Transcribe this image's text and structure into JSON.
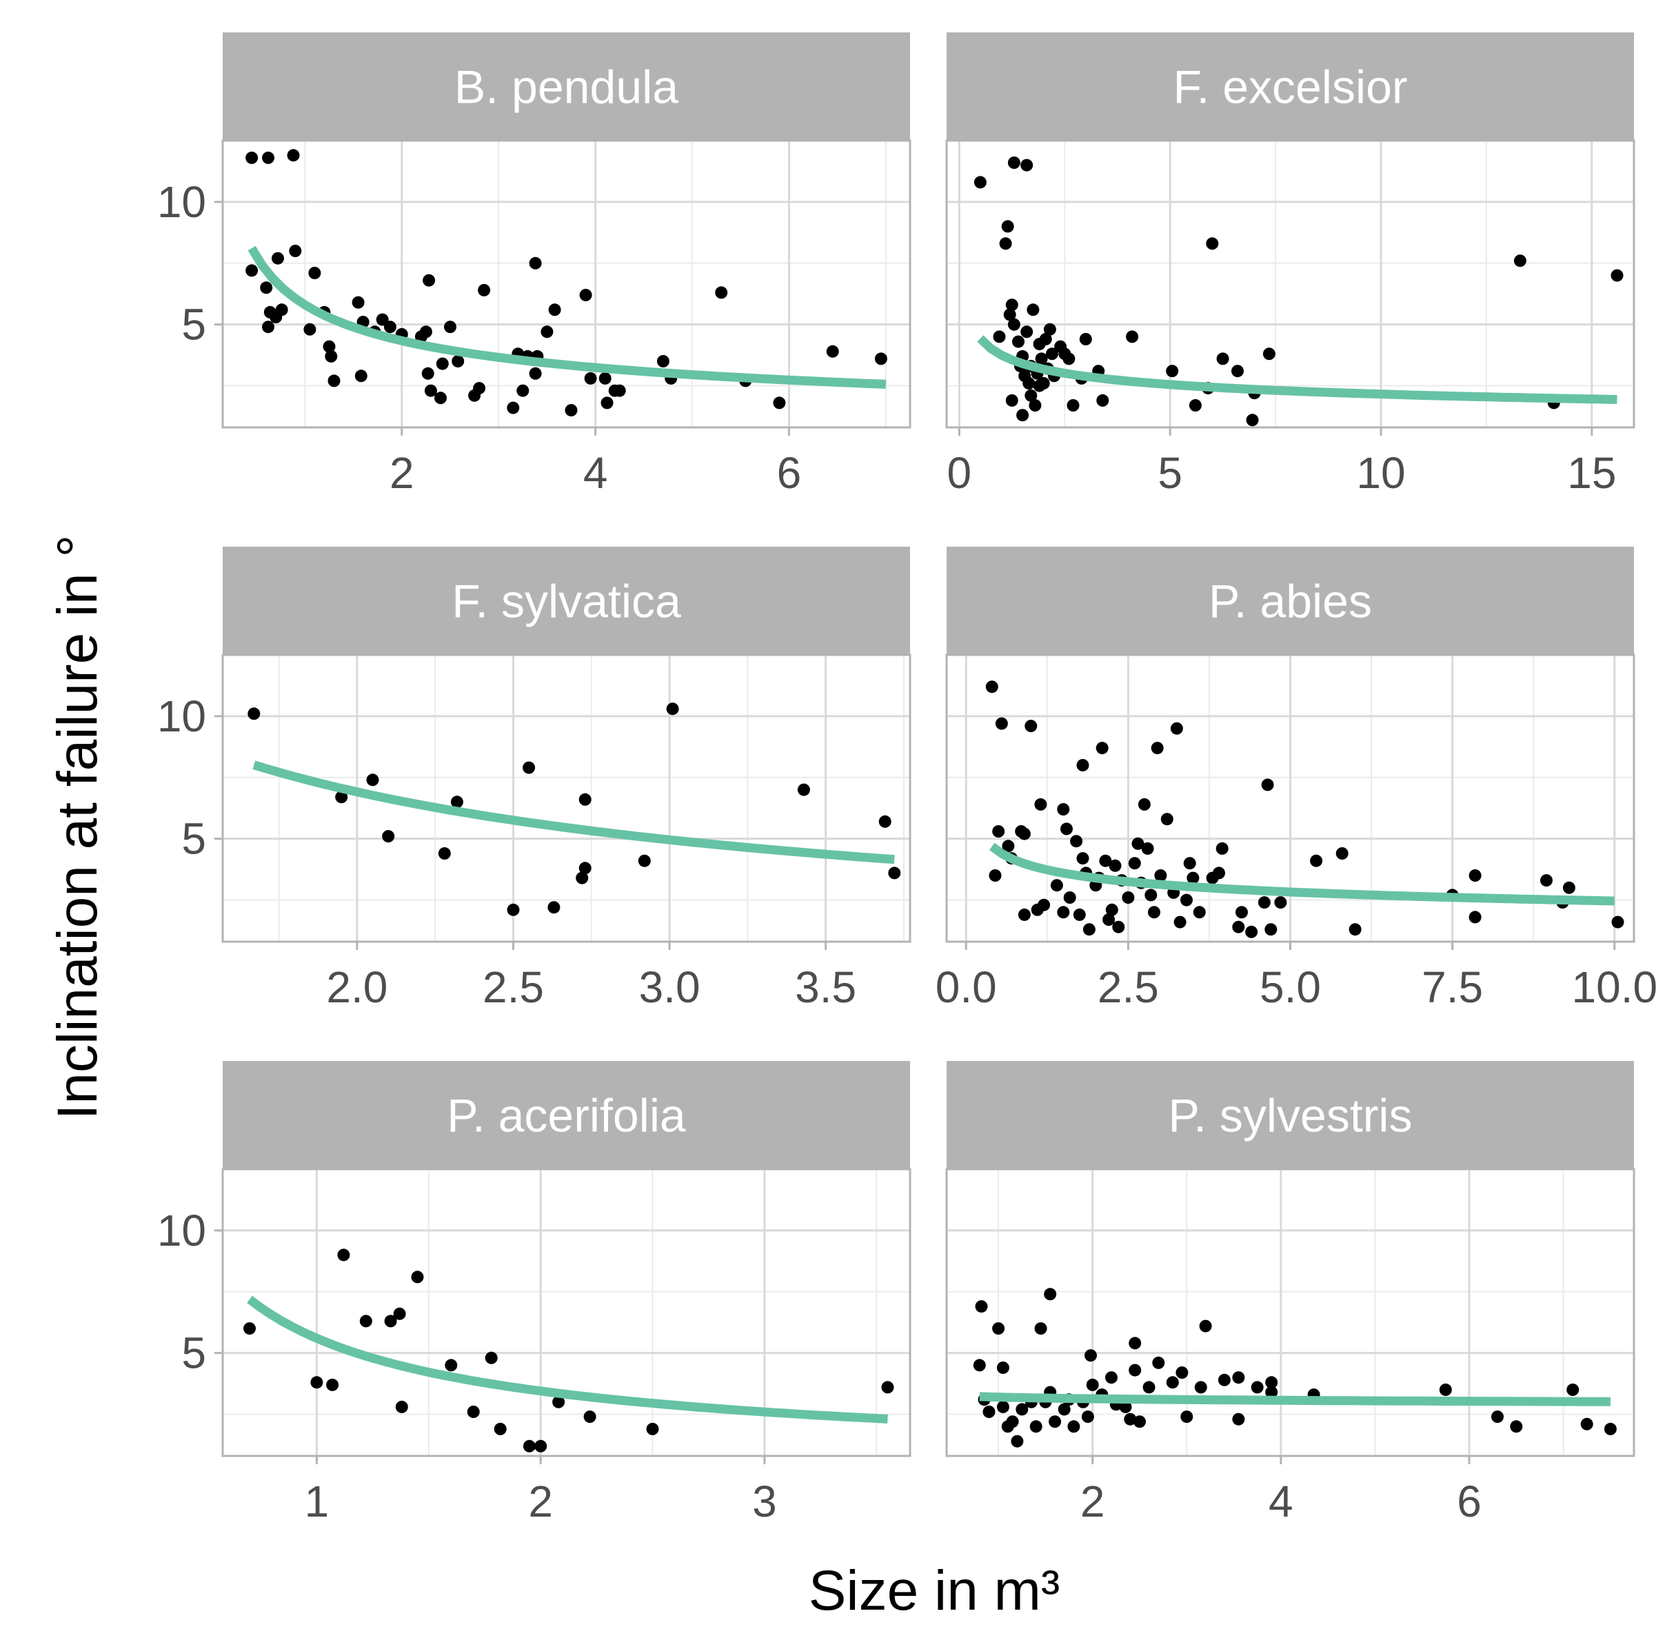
{
  "chart_data": {
    "type": "scatter",
    "xlabel": "Size in m³",
    "ylabel": "Inclination at failure in °",
    "ylim": [
      0.8,
      12.5
    ],
    "y_ticks": [
      5,
      10
    ],
    "colors": {
      "fit_line": "#66c2a5",
      "points": "#000000",
      "strip": "#b3b3b3",
      "grid_major": "#d9d9d9",
      "grid_minor": "#ebebeb",
      "panel_border": "#b3b3b3"
    },
    "panels": [
      {
        "title": "B. pendula",
        "xlim": [
          0.15,
          7.25
        ],
        "x_ticks": [
          2,
          4,
          6
        ],
        "x_tick_labels": [
          "2",
          "4",
          "6"
        ],
        "fit": {
          "a": 5.8,
          "b": 0.42,
          "x_start": 0.45,
          "x_end": 7.0
        },
        "points": [
          [
            0.45,
            11.8
          ],
          [
            0.62,
            11.8
          ],
          [
            0.88,
            11.9
          ],
          [
            0.45,
            7.2
          ],
          [
            0.6,
            6.5
          ],
          [
            0.62,
            4.9
          ],
          [
            0.64,
            5.5
          ],
          [
            0.7,
            5.3
          ],
          [
            0.72,
            7.7
          ],
          [
            0.76,
            5.6
          ],
          [
            0.9,
            8.0
          ],
          [
            1.05,
            4.8
          ],
          [
            1.1,
            7.1
          ],
          [
            1.2,
            5.5
          ],
          [
            1.25,
            4.1
          ],
          [
            1.27,
            3.7
          ],
          [
            1.3,
            2.7
          ],
          [
            1.55,
            5.9
          ],
          [
            1.58,
            2.9
          ],
          [
            1.6,
            5.1
          ],
          [
            1.72,
            4.7
          ],
          [
            1.8,
            5.2
          ],
          [
            1.88,
            4.9
          ],
          [
            2.0,
            4.6
          ],
          [
            2.2,
            4.5
          ],
          [
            2.25,
            4.7
          ],
          [
            2.27,
            3.0
          ],
          [
            2.28,
            6.8
          ],
          [
            2.3,
            2.3
          ],
          [
            2.4,
            2.0
          ],
          [
            2.42,
            3.4
          ],
          [
            2.5,
            4.9
          ],
          [
            2.58,
            3.5
          ],
          [
            2.75,
            2.1
          ],
          [
            2.8,
            2.4
          ],
          [
            2.85,
            6.4
          ],
          [
            3.15,
            1.6
          ],
          [
            3.2,
            3.8
          ],
          [
            3.25,
            2.3
          ],
          [
            3.3,
            3.7
          ],
          [
            3.38,
            3.0
          ],
          [
            3.38,
            7.5
          ],
          [
            3.4,
            3.7
          ],
          [
            3.5,
            4.7
          ],
          [
            3.58,
            5.6
          ],
          [
            3.75,
            1.5
          ],
          [
            3.9,
            6.2
          ],
          [
            3.95,
            2.8
          ],
          [
            4.1,
            2.8
          ],
          [
            4.12,
            1.8
          ],
          [
            4.2,
            2.3
          ],
          [
            4.25,
            2.3
          ],
          [
            4.7,
            3.5
          ],
          [
            4.78,
            2.8
          ],
          [
            5.3,
            6.3
          ],
          [
            5.55,
            2.7
          ],
          [
            5.9,
            1.8
          ],
          [
            6.45,
            3.9
          ],
          [
            6.95,
            3.6
          ]
        ]
      },
      {
        "title": "F. excelsior",
        "xlim": [
          -0.3,
          16.0
        ],
        "x_ticks": [
          0,
          5,
          10,
          15
        ],
        "x_tick_labels": [
          "0",
          "5",
          "10",
          "15"
        ],
        "fit": {
          "a": 3.75,
          "b": 0.24,
          "x_start": 0.5,
          "x_end": 15.6
        },
        "points": [
          [
            0.5,
            10.8
          ],
          [
            0.95,
            4.5
          ],
          [
            1.1,
            8.3
          ],
          [
            1.15,
            9.0
          ],
          [
            1.2,
            5.4
          ],
          [
            1.25,
            5.8
          ],
          [
            1.25,
            1.9
          ],
          [
            1.3,
            11.6
          ],
          [
            1.3,
            5.0
          ],
          [
            1.4,
            4.3
          ],
          [
            1.45,
            3.3
          ],
          [
            1.5,
            1.3
          ],
          [
            1.5,
            3.7
          ],
          [
            1.55,
            2.9
          ],
          [
            1.6,
            4.7
          ],
          [
            1.6,
            11.5
          ],
          [
            1.65,
            2.6
          ],
          [
            1.7,
            2.1
          ],
          [
            1.7,
            3.3
          ],
          [
            1.75,
            5.6
          ],
          [
            1.8,
            1.7
          ],
          [
            1.85,
            3.0
          ],
          [
            1.9,
            4.2
          ],
          [
            1.9,
            2.5
          ],
          [
            1.95,
            3.6
          ],
          [
            2.0,
            2.6
          ],
          [
            2.05,
            4.4
          ],
          [
            2.1,
            3.2
          ],
          [
            2.15,
            4.8
          ],
          [
            2.2,
            3.8
          ],
          [
            2.25,
            2.9
          ],
          [
            2.4,
            4.1
          ],
          [
            2.5,
            3.8
          ],
          [
            2.6,
            3.6
          ],
          [
            2.7,
            1.7
          ],
          [
            2.9,
            2.8
          ],
          [
            3.0,
            4.4
          ],
          [
            3.3,
            3.1
          ],
          [
            3.4,
            1.9
          ],
          [
            4.1,
            4.5
          ],
          [
            5.05,
            3.1
          ],
          [
            5.6,
            1.7
          ],
          [
            5.9,
            2.4
          ],
          [
            6.0,
            8.3
          ],
          [
            6.25,
            3.6
          ],
          [
            6.6,
            3.1
          ],
          [
            6.95,
            1.1
          ],
          [
            7.0,
            2.2
          ],
          [
            7.35,
            3.8
          ],
          [
            13.3,
            7.6
          ],
          [
            14.1,
            1.8
          ],
          [
            15.6,
            7.0
          ]
        ]
      },
      {
        "title": "F. sylvatica",
        "xlim": [
          1.57,
          3.77
        ],
        "x_ticks": [
          2.0,
          2.5,
          3.0,
          3.5
        ],
        "x_tick_labels": [
          "2.0",
          "2.5",
          "3.0",
          "3.5"
        ],
        "fit": {
          "a": 12.2,
          "b": 0.82,
          "x_start": 1.67,
          "x_end": 3.72
        },
        "points": [
          [
            1.67,
            10.1
          ],
          [
            1.95,
            6.7
          ],
          [
            2.05,
            7.4
          ],
          [
            2.1,
            5.1
          ],
          [
            2.28,
            4.4
          ],
          [
            2.32,
            6.5
          ],
          [
            2.5,
            2.1
          ],
          [
            2.55,
            7.9
          ],
          [
            2.63,
            2.2
          ],
          [
            2.72,
            3.4
          ],
          [
            2.73,
            3.8
          ],
          [
            2.73,
            6.6
          ],
          [
            2.92,
            4.1
          ],
          [
            3.01,
            10.3
          ],
          [
            3.43,
            7.0
          ],
          [
            3.69,
            5.7
          ],
          [
            3.72,
            3.6
          ]
        ]
      },
      {
        "title": "P. abies",
        "xlim": [
          -0.3,
          10.3
        ],
        "x_ticks": [
          0.0,
          2.5,
          5.0,
          7.5,
          10.0
        ],
        "x_tick_labels": [
          "0.0",
          "2.5",
          "5.0",
          "7.5",
          "10.0"
        ],
        "fit": {
          "a": 3.9,
          "b": 0.2,
          "x_start": 0.4,
          "x_end": 10.0
        },
        "points": [
          [
            0.4,
            11.2
          ],
          [
            0.45,
            3.5
          ],
          [
            0.5,
            5.3
          ],
          [
            0.55,
            9.7
          ],
          [
            0.65,
            4.7
          ],
          [
            0.7,
            4.2
          ],
          [
            0.85,
            5.3
          ],
          [
            0.9,
            1.9
          ],
          [
            0.9,
            5.2
          ],
          [
            1.0,
            9.6
          ],
          [
            1.1,
            2.1
          ],
          [
            1.15,
            6.4
          ],
          [
            1.2,
            2.3
          ],
          [
            1.4,
            3.1
          ],
          [
            1.5,
            2.0
          ],
          [
            1.5,
            6.2
          ],
          [
            1.55,
            5.4
          ],
          [
            1.6,
            2.6
          ],
          [
            1.7,
            4.9
          ],
          [
            1.75,
            1.9
          ],
          [
            1.8,
            4.2
          ],
          [
            1.8,
            8.0
          ],
          [
            1.85,
            3.6
          ],
          [
            1.9,
            1.3
          ],
          [
            2.0,
            3.1
          ],
          [
            2.05,
            3.4
          ],
          [
            2.1,
            8.7
          ],
          [
            2.15,
            4.1
          ],
          [
            2.2,
            1.7
          ],
          [
            2.25,
            2.1
          ],
          [
            2.3,
            3.9
          ],
          [
            2.35,
            1.4
          ],
          [
            2.4,
            3.3
          ],
          [
            2.5,
            2.6
          ],
          [
            2.6,
            4.0
          ],
          [
            2.65,
            4.8
          ],
          [
            2.7,
            3.2
          ],
          [
            2.75,
            6.4
          ],
          [
            2.8,
            4.6
          ],
          [
            2.85,
            2.7
          ],
          [
            2.9,
            2.0
          ],
          [
            2.95,
            8.7
          ],
          [
            3.0,
            3.5
          ],
          [
            3.1,
            5.8
          ],
          [
            3.2,
            2.8
          ],
          [
            3.25,
            9.5
          ],
          [
            3.3,
            1.6
          ],
          [
            3.4,
            2.5
          ],
          [
            3.45,
            4.0
          ],
          [
            3.5,
            3.4
          ],
          [
            3.6,
            2.0
          ],
          [
            3.8,
            3.4
          ],
          [
            3.9,
            3.6
          ],
          [
            3.95,
            4.6
          ],
          [
            4.2,
            1.4
          ],
          [
            4.25,
            2.0
          ],
          [
            4.4,
            1.2
          ],
          [
            4.6,
            2.4
          ],
          [
            4.65,
            7.2
          ],
          [
            4.7,
            1.3
          ],
          [
            4.85,
            2.4
          ],
          [
            5.4,
            4.1
          ],
          [
            5.8,
            4.4
          ],
          [
            6.0,
            1.3
          ],
          [
            7.5,
            2.7
          ],
          [
            7.85,
            3.5
          ],
          [
            7.85,
            1.8
          ],
          [
            8.95,
            3.3
          ],
          [
            9.2,
            2.4
          ],
          [
            9.3,
            3.0
          ],
          [
            10.05,
            1.6
          ]
        ]
      },
      {
        "title": "P. acerifolia",
        "xlim": [
          0.58,
          3.65
        ],
        "x_ticks": [
          1,
          2,
          3
        ],
        "x_tick_labels": [
          "1",
          "2",
          "3"
        ],
        "fit": {
          "a": 5.6,
          "b": 0.7,
          "x_start": 0.7,
          "x_end": 3.55
        },
        "points": [
          [
            0.7,
            6.0
          ],
          [
            1.0,
            3.8
          ],
          [
            1.07,
            3.7
          ],
          [
            1.12,
            9.0
          ],
          [
            1.22,
            6.3
          ],
          [
            1.33,
            6.3
          ],
          [
            1.37,
            6.6
          ],
          [
            1.38,
            2.8
          ],
          [
            1.45,
            8.1
          ],
          [
            1.6,
            4.5
          ],
          [
            1.7,
            2.6
          ],
          [
            1.78,
            4.8
          ],
          [
            1.82,
            1.9
          ],
          [
            1.95,
            1.2
          ],
          [
            2.0,
            1.2
          ],
          [
            2.08,
            3.0
          ],
          [
            2.22,
            2.4
          ],
          [
            2.5,
            1.9
          ],
          [
            3.55,
            3.6
          ]
        ]
      },
      {
        "title": "P. sylvestris",
        "xlim": [
          0.45,
          7.75
        ],
        "x_ticks": [
          2,
          4,
          6
        ],
        "x_tick_labels": [
          "2",
          "4",
          "6"
        ],
        "fit": {
          "a": 3.2,
          "b": 0.03,
          "x_start": 0.8,
          "x_end": 7.5
        },
        "points": [
          [
            0.8,
            4.5
          ],
          [
            0.82,
            6.9
          ],
          [
            0.85,
            3.1
          ],
          [
            0.9,
            2.6
          ],
          [
            1.0,
            6.0
          ],
          [
            1.05,
            2.8
          ],
          [
            1.05,
            4.4
          ],
          [
            1.1,
            2.0
          ],
          [
            1.15,
            2.2
          ],
          [
            1.2,
            1.4
          ],
          [
            1.25,
            2.7
          ],
          [
            1.35,
            3.0
          ],
          [
            1.4,
            2.0
          ],
          [
            1.45,
            6.0
          ],
          [
            1.5,
            3.0
          ],
          [
            1.55,
            3.4
          ],
          [
            1.55,
            7.4
          ],
          [
            1.6,
            2.2
          ],
          [
            1.7,
            2.7
          ],
          [
            1.75,
            3.1
          ],
          [
            1.8,
            2.0
          ],
          [
            1.9,
            3.0
          ],
          [
            1.95,
            2.4
          ],
          [
            1.98,
            4.9
          ],
          [
            2.0,
            3.7
          ],
          [
            2.1,
            3.3
          ],
          [
            2.2,
            4.0
          ],
          [
            2.25,
            2.9
          ],
          [
            2.35,
            2.8
          ],
          [
            2.4,
            2.3
          ],
          [
            2.45,
            4.3
          ],
          [
            2.45,
            5.4
          ],
          [
            2.5,
            2.2
          ],
          [
            2.6,
            3.6
          ],
          [
            2.7,
            4.6
          ],
          [
            2.85,
            3.8
          ],
          [
            2.95,
            4.2
          ],
          [
            3.0,
            2.4
          ],
          [
            3.15,
            3.6
          ],
          [
            3.2,
            6.1
          ],
          [
            3.4,
            3.9
          ],
          [
            3.55,
            2.3
          ],
          [
            3.55,
            4.0
          ],
          [
            3.75,
            3.6
          ],
          [
            3.9,
            3.8
          ],
          [
            3.9,
            3.4
          ],
          [
            4.35,
            3.3
          ],
          [
            5.75,
            3.5
          ],
          [
            6.3,
            2.4
          ],
          [
            6.5,
            2.0
          ],
          [
            7.1,
            3.5
          ],
          [
            7.25,
            2.1
          ],
          [
            7.5,
            1.9
          ]
        ]
      }
    ]
  }
}
